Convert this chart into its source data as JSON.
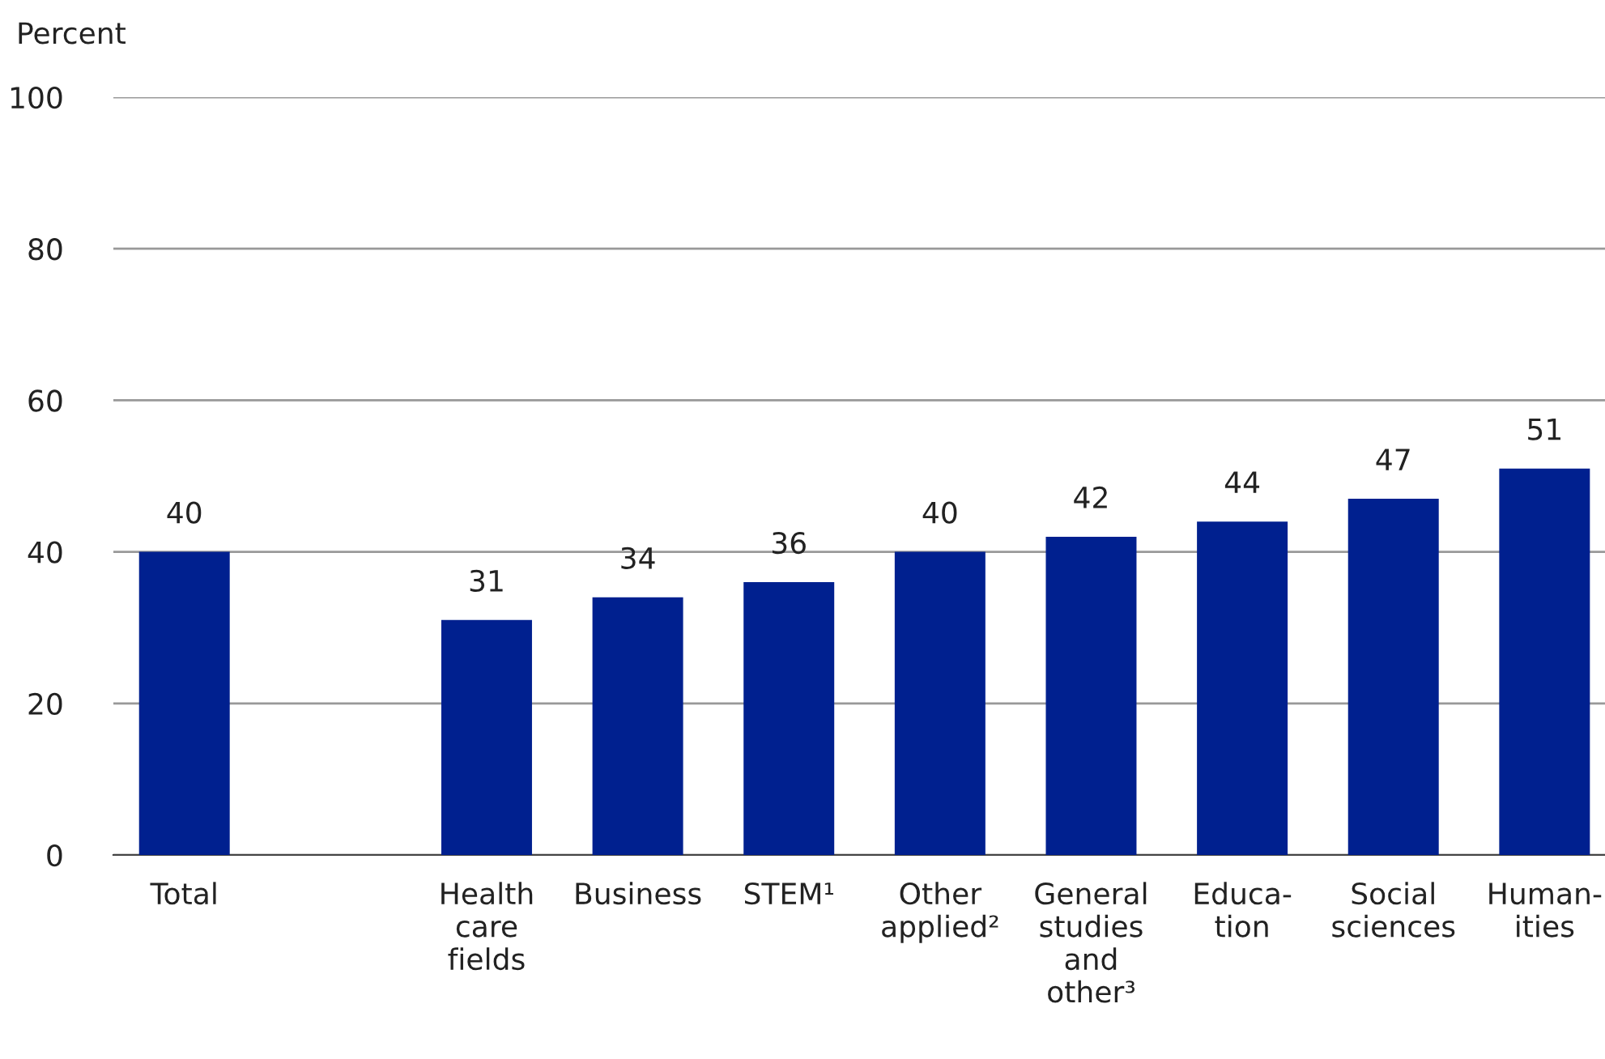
{
  "chart_data": {
    "type": "bar",
    "ylabel": "Percent",
    "categories": [
      "Total",
      null,
      "Health\ncare\nfields",
      "Business",
      "STEM¹",
      "Other\napplied²",
      "General\nstudies\nand\nother³",
      "Educa-\ntion",
      "Social\nsciences",
      "Human-\nities"
    ],
    "values": [
      40,
      null,
      31,
      34,
      36,
      40,
      42,
      44,
      47,
      51
    ],
    "color": "#00208f",
    "ylim": [
      0,
      100
    ],
    "yticks": [
      0,
      20,
      40,
      60,
      80,
      100
    ],
    "grid": "y",
    "data_labels": true
  }
}
